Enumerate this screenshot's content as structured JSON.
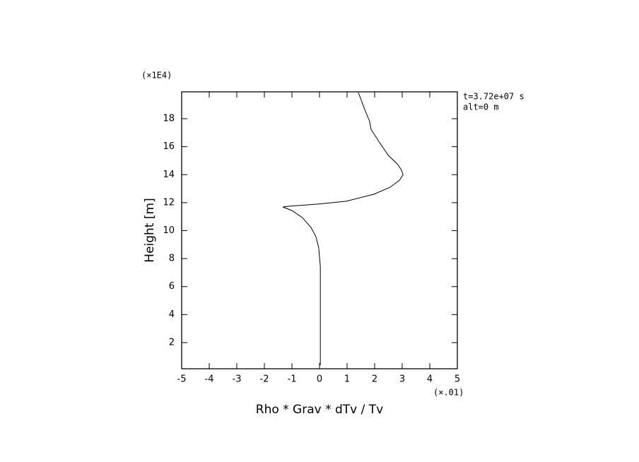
{
  "chart_data": {
    "type": "line",
    "xlabel": "Rho * Grav * dTv / Tv",
    "ylabel": "Height [m]",
    "x_multiplier": "(×.01)",
    "y_multiplier": "(×1E4)",
    "annotations": [
      "t=3.72e+07 s",
      "alt=0 m"
    ],
    "xlim": [
      -5,
      5
    ],
    "ylim": [
      0.13,
      19.92
    ],
    "xticks": [
      -5,
      -4,
      -3,
      -2,
      -1,
      0,
      1,
      2,
      3,
      4,
      5
    ],
    "yticks": [
      2,
      4,
      6,
      8,
      10,
      12,
      14,
      16,
      18
    ],
    "grid": false,
    "series": [
      {
        "color": "#000000",
        "x": [
          0.03,
          0.03,
          -0.03,
          -0.13,
          -0.31,
          -0.62,
          -1.0,
          -1.33,
          -1.13,
          -0.05,
          0.97,
          1.97,
          2.56,
          2.9,
          3.03,
          2.97,
          2.82,
          2.5,
          2.15,
          1.87,
          1.82,
          1.64,
          1.41
        ],
        "values": [
          0.38,
          7.45,
          8.8,
          9.57,
          10.23,
          10.93,
          11.44,
          11.69,
          11.74,
          11.9,
          12.1,
          12.6,
          13.1,
          13.6,
          14.0,
          14.35,
          14.77,
          15.37,
          16.38,
          17.24,
          17.8,
          18.66,
          19.87
        ]
      }
    ]
  }
}
